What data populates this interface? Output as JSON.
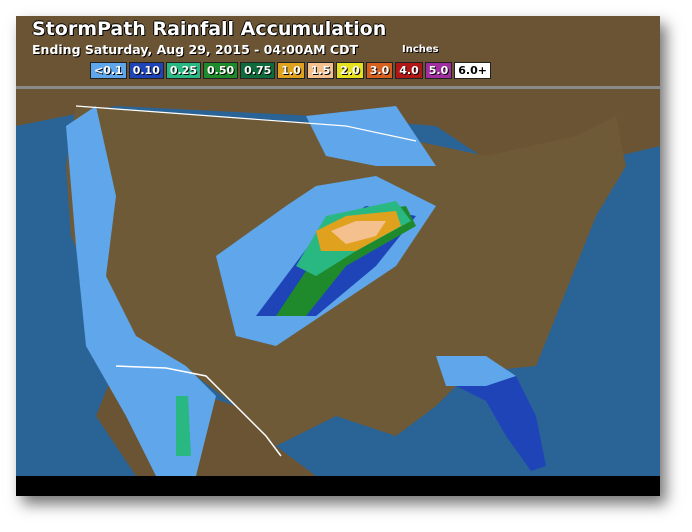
{
  "header": {
    "title": "StormPath Rainfall Accumulation",
    "subtitle": "Ending Saturday, Aug 29, 2015 - 04:00AM CDT",
    "units": "Inches"
  },
  "legend": [
    {
      "label": "<0.1",
      "color": "#5fa6ea"
    },
    {
      "label": "0.10",
      "color": "#1f44b8"
    },
    {
      "label": "0.25",
      "color": "#2ab882"
    },
    {
      "label": "0.50",
      "color": "#1e8a2c"
    },
    {
      "label": "0.75",
      "color": "#0f6a3c"
    },
    {
      "label": "1.0",
      "color": "#e0a21e"
    },
    {
      "label": "1.5",
      "color": "#f4c08e"
    },
    {
      "label": "2.0",
      "color": "#e6e01e"
    },
    {
      "label": "3.0",
      "color": "#d8601e"
    },
    {
      "label": "4.0",
      "color": "#b01818"
    },
    {
      "label": "5.0",
      "color": "#a02ea0"
    },
    {
      "label": "6.0+",
      "color": "#ffffff"
    }
  ],
  "colors": {
    "water": "#2a6496",
    "land": "#6b5434",
    "us_land": "#6e5a36"
  }
}
